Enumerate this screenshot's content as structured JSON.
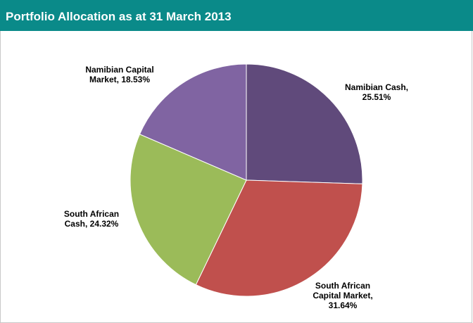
{
  "chart_data": {
    "type": "pie",
    "title": "Portfolio Allocation as at 31 March 2013",
    "values": [
      25.51,
      31.64,
      24.32,
      18.53
    ],
    "value_labels": [
      [
        "Namibian Cash,",
        "25.51%"
      ],
      [
        "South African",
        "Capital Market,",
        "31.64%"
      ],
      [
        "South African",
        "Cash, 24.32%"
      ],
      [
        "Namibian Capital",
        "Market, 18.53%"
      ]
    ],
    "colors": [
      "#604a7b",
      "#c0504d",
      "#9bbb59",
      "#8064a2"
    ]
  }
}
